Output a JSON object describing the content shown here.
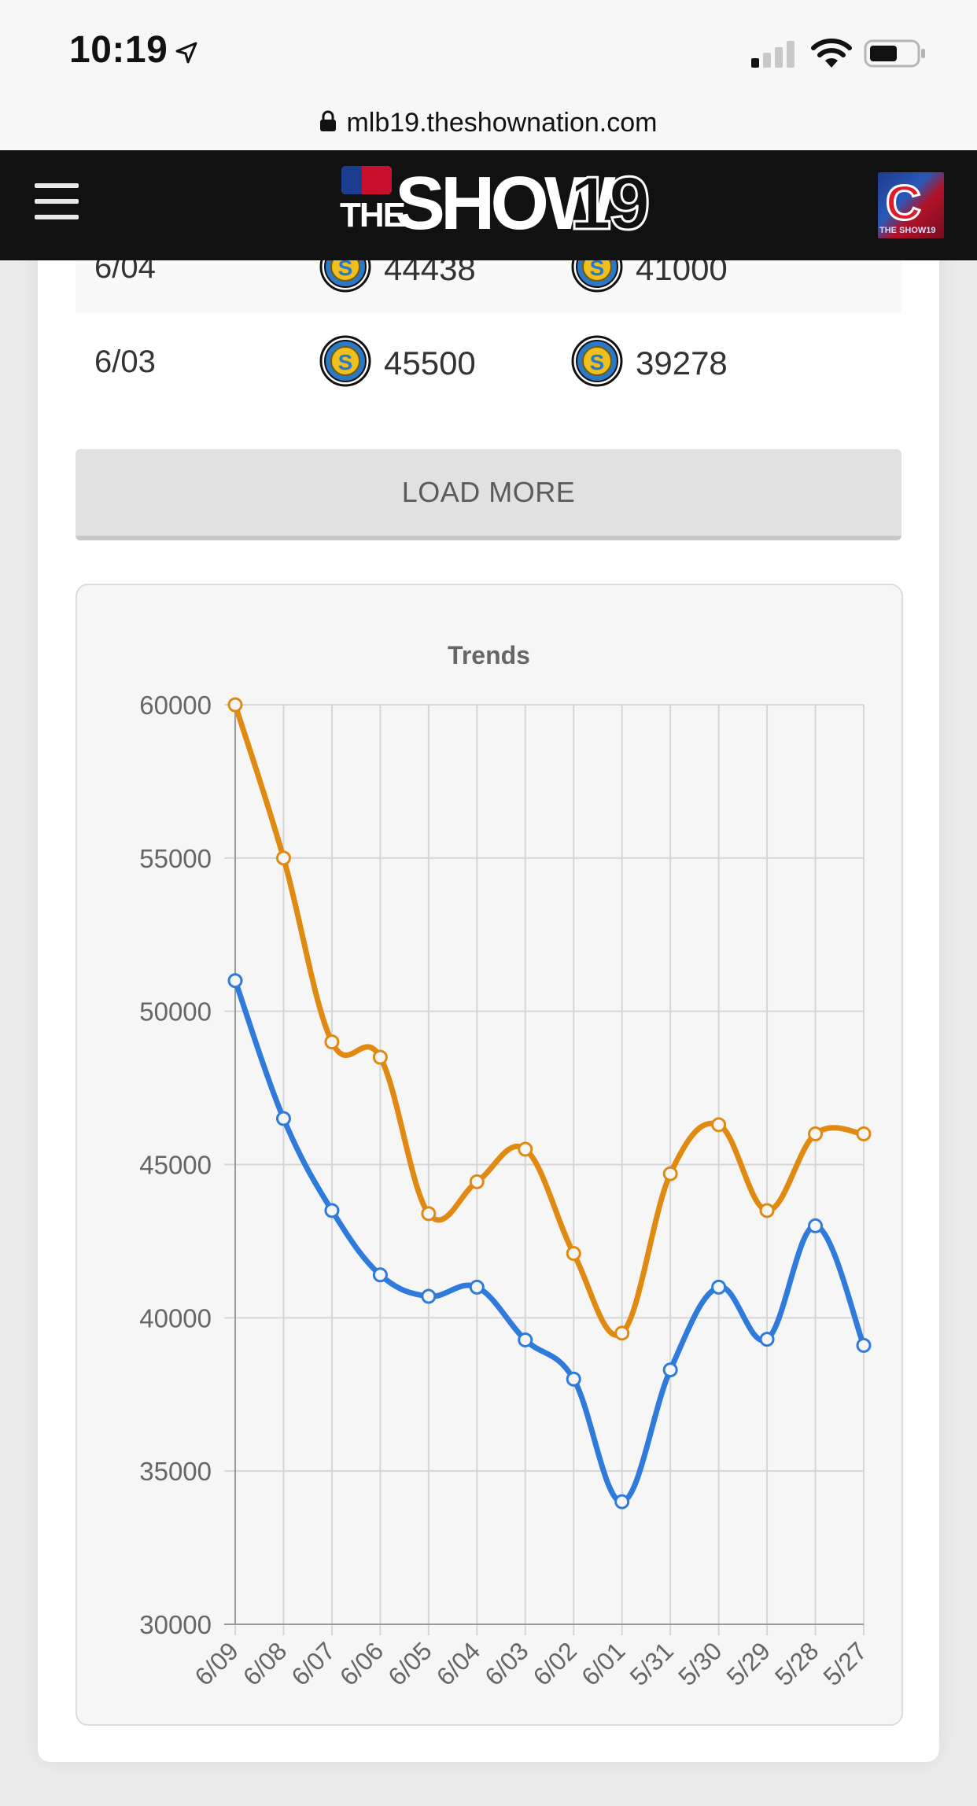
{
  "status_bar": {
    "time": "10:19"
  },
  "browser": {
    "url": "mlb19.theshownation.com"
  },
  "header": {
    "logo_the": "THE",
    "logo_show": "SHOW",
    "logo_year": "19",
    "avatar_letter": "C",
    "avatar_caption": "THE SHOW19"
  },
  "history": [
    {
      "date": "6/04",
      "buy": "44438",
      "sell": "41000"
    },
    {
      "date": "6/03",
      "buy": "45500",
      "sell": "39278"
    }
  ],
  "load_more_label": "LOAD MORE",
  "chart_data": {
    "type": "line",
    "title": "Trends",
    "xlabel": "",
    "ylabel": "",
    "categories": [
      "6/09",
      "6/08",
      "6/07",
      "6/06",
      "6/05",
      "6/04",
      "6/03",
      "6/02",
      "6/01",
      "5/31",
      "5/30",
      "5/29",
      "5/28",
      "5/27"
    ],
    "ylim": [
      30000,
      60000
    ],
    "yticks": [
      "60000",
      "55000",
      "50000",
      "45000",
      "40000",
      "35000",
      "30000"
    ],
    "grid": true,
    "series": [
      {
        "color": "#e08a12",
        "values": [
          60000,
          55000,
          49000,
          48500,
          43400,
          44438,
          45500,
          42100,
          39500,
          44700,
          46300,
          43500,
          46000,
          46000
        ]
      },
      {
        "color": "#2f7bdc",
        "values": [
          51000,
          46500,
          43500,
          41400,
          40700,
          41000,
          39278,
          38000,
          34000,
          38300,
          41000,
          39300,
          43000,
          39100
        ]
      }
    ]
  },
  "colors": {
    "header_bg": "#111111",
    "stub_gold": "#f0c020",
    "stub_blue": "#2a78c8"
  }
}
